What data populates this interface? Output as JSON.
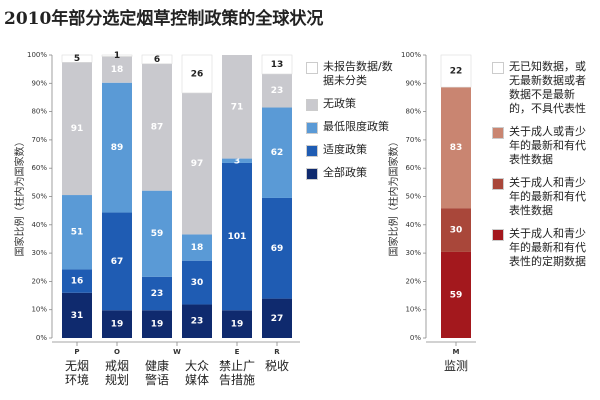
{
  "title": "2010年部分选定烟草控制政策的全球状况",
  "chart_data": [
    {
      "type": "bar",
      "stacked": true,
      "normalize": true,
      "ylabel": "国家比例（柱内为国家数）",
      "categories": [
        "无烟环境",
        "戒烟规划",
        "健康警语",
        "大众媒体",
        "禁止广告措施",
        "税收"
      ],
      "letters": [
        {
          "label": "P",
          "categories": [
            0
          ]
        },
        {
          "label": "O",
          "categories": [
            1
          ]
        },
        {
          "label": "W",
          "categories": [
            2,
            3
          ]
        },
        {
          "label": "E",
          "categories": [
            4
          ]
        },
        {
          "label": "R",
          "categories": [
            5
          ]
        }
      ],
      "series": [
        {
          "name": "全部政策",
          "color": "#0f2a6e",
          "label_color": "#ffffff",
          "values": [
            31,
            19,
            19,
            23,
            19,
            27
          ]
        },
        {
          "name": "适度政策",
          "color": "#1f5cb3",
          "label_color": "#ffffff",
          "values": [
            16,
            67,
            23,
            30,
            101,
            69
          ]
        },
        {
          "name": "最低限度政策",
          "color": "#5a9ad6",
          "label_color": "#ffffff",
          "values": [
            51,
            89,
            59,
            18,
            3,
            62
          ]
        },
        {
          "name": "无政策",
          "color": "#c9c9ce",
          "label_color": "#ffffff",
          "values": [
            91,
            18,
            87,
            97,
            71,
            23
          ]
        },
        {
          "name": "未报告数据/数据未分类",
          "color": "#ffffff",
          "label_color": "#222222",
          "values": [
            5,
            1,
            6,
            26,
            null,
            13
          ]
        }
      ],
      "ylim": [
        0,
        100
      ],
      "yticks": [
        {
          "value": 0,
          "label": "0%"
        },
        {
          "value": 10,
          "label": "10%"
        },
        {
          "value": 20,
          "label": "20%"
        },
        {
          "value": 30,
          "label": "30%"
        },
        {
          "value": 40,
          "label": "40%"
        },
        {
          "value": 50,
          "label": "50%"
        },
        {
          "value": 60,
          "label": "60%"
        },
        {
          "value": 70,
          "label": "70%"
        },
        {
          "value": 80,
          "label": "80%"
        },
        {
          "value": 90,
          "label": "90%"
        },
        {
          "value": 100,
          "label": "100%"
        }
      ]
    },
    {
      "type": "bar",
      "stacked": true,
      "normalize": true,
      "ylabel": "国家比例（柱内为国家数）",
      "categories": [
        "监测"
      ],
      "letters": [
        {
          "label": "M",
          "categories": [
            0
          ]
        }
      ],
      "series": [
        {
          "name": "关于成人和青少年的最新和有代表性的定期数据",
          "color": "#a3181d",
          "label_color": "#ffffff",
          "values": [
            59
          ]
        },
        {
          "name": "关于成人和青少年的最新和有代表性数据",
          "color": "#a9473a",
          "label_color": "#ffffff",
          "values": [
            30
          ]
        },
        {
          "name": "关于成人或青少年的最新和有代表性数据",
          "color": "#c98571",
          "label_color": "#ffffff",
          "values": [
            83
          ]
        },
        {
          "name": "无已知数据，或无最新数据或者数据不是最新的，不具代表性",
          "color": "#ffffff",
          "label_color": "#222222",
          "values": [
            22
          ]
        }
      ],
      "ylim": [
        0,
        100
      ],
      "yticks": [
        {
          "value": 0,
          "label": "0%"
        },
        {
          "value": 10,
          "label": "10%"
        },
        {
          "value": 20,
          "label": "20%"
        },
        {
          "value": 30,
          "label": "30%"
        },
        {
          "value": 40,
          "label": "40%"
        },
        {
          "value": 50,
          "label": "50%"
        },
        {
          "value": 60,
          "label": "60%"
        },
        {
          "value": 70,
          "label": "70%"
        },
        {
          "value": 80,
          "label": "80%"
        },
        {
          "value": 90,
          "label": "90%"
        },
        {
          "value": 100,
          "label": "100%"
        }
      ]
    }
  ]
}
